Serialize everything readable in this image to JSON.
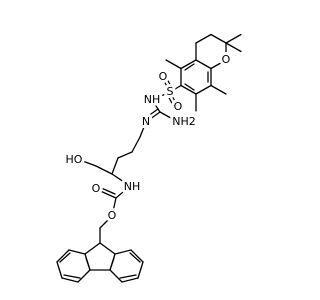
{
  "atoms": [
    {
      "label": "O"
    },
    {
      "label": "S"
    },
    {
      "label": "O"
    },
    {
      "label": "O"
    },
    {
      "label": "NH"
    },
    {
      "label": "NH2"
    },
    {
      "label": "N"
    },
    {
      "label": "HO"
    },
    {
      "label": "NH"
    },
    {
      "label": "O"
    },
    {
      "label": "O"
    }
  ]
}
